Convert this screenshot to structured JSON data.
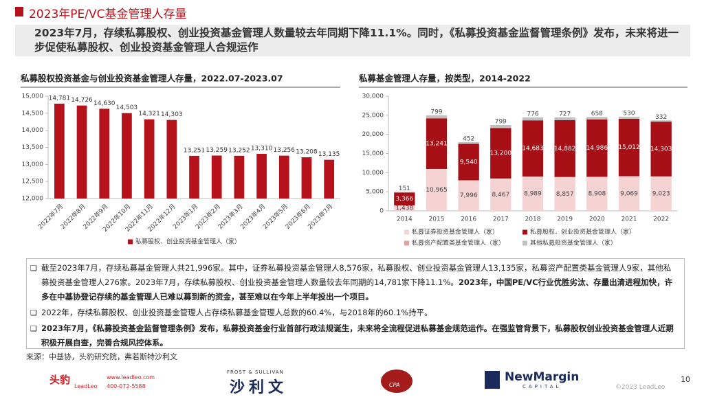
{
  "header": {
    "title": "2023年PE/VC基金管理人存量",
    "subtitle": "2023年7月，存续私募股权、创业投资基金管理人数量较去年同期下降11.1%。同时，《私募投资基金监督管理条例》发布，未来将进一步促使私募股权、创业投资基金管理人合规运作"
  },
  "chart_data": [
    {
      "type": "bar",
      "title": "私募股权投资基金与创业投资基金管理人存量，2022.07-2023.07",
      "categories": [
        "2022年7月",
        "2022年8月",
        "2022年9月",
        "2022年10月",
        "2022年11月",
        "2022年12月",
        "2023年1月",
        "2023年2月",
        "2023年3月",
        "2023年4月",
        "2023年5月",
        "2023年6月",
        "2023年7月"
      ],
      "series": [
        {
          "name": "私募股权、创业投资基金管理人（家）",
          "color": "#b5121b",
          "values": [
            14781,
            14726,
            14630,
            14503,
            14321,
            14303,
            13251,
            13259,
            13252,
            13310,
            13256,
            13208,
            13135
          ],
          "value_labels": [
            "14,781",
            "14,726",
            "14,630",
            "14,503",
            "14,321",
            "14,303",
            "13,251",
            "13,259",
            "13,252",
            "13,310",
            "13,256",
            "13,208",
            "13,135"
          ]
        }
      ],
      "ylim": [
        12000,
        15000
      ],
      "yticks": [
        {
          "value": 12000,
          "label": "12,000"
        },
        {
          "value": 12500,
          "label": "12,500"
        },
        {
          "value": 13000,
          "label": "13,000"
        },
        {
          "value": 13500,
          "label": "13,500"
        },
        {
          "value": 14000,
          "label": "14,000"
        },
        {
          "value": 14500,
          "label": "14,500"
        },
        {
          "value": 15000,
          "label": "15,000"
        }
      ]
    },
    {
      "type": "stacked_bar",
      "title": "私募基金管理人存量，按类型，2014-2022",
      "categories": [
        "2014",
        "2015",
        "2016",
        "2017",
        "2018",
        "2019",
        "2020",
        "2021",
        "2022"
      ],
      "series": [
        {
          "name": "私募证券投资基金管理人（家）",
          "color": "#f6d3d3",
          "values": [
            1438,
            10965,
            7996,
            8467,
            8989,
            8857,
            8908,
            9069,
            9023
          ],
          "value_labels": [
            "1,438",
            "10,965",
            "7,996",
            "8,467",
            "8,989",
            "8,857",
            "8,908",
            "9,069",
            "9,023"
          ]
        },
        {
          "name": "私募股权、创业投资基金管理人（家）",
          "color": "#a50f15",
          "values": [
            3366,
            13241,
            9540,
            13200,
            14683,
            14882,
            14986,
            15012,
            14303
          ],
          "value_labels": [
            "3,366",
            "13,241",
            "9,540",
            "13,200",
            "14,683",
            "14,882",
            "14,986",
            "15,012",
            "14,303"
          ]
        },
        {
          "name": "私募资产配置类基金管理人（家）",
          "color": "#e3a0a0",
          "values": [
            null,
            null,
            null,
            null,
            null,
            null,
            9,
            9,
            9
          ]
        },
        {
          "name": "其他私募投资基金管理人（家）",
          "color": "#c0c0c0",
          "values": [
            151,
            799,
            452,
            799,
            776,
            727,
            658,
            530,
            332
          ]
        }
      ],
      "ylim": [
        0,
        30000
      ],
      "yticks": [
        0,
        {
          "value": 5000,
          "label": "5,000"
        },
        {
          "value": 10000,
          "label": "10,000"
        },
        {
          "value": 15000,
          "label": "15,000"
        },
        {
          "value": 20000,
          "label": "20,000"
        },
        {
          "value": 25000,
          "label": "25,000"
        },
        {
          "value": 30000,
          "label": "30,000"
        }
      ]
    }
  ],
  "bullets": [
    {
      "plain": "截至2023年7月，存续私募基金管理人共21,996家。其中，证券私募投资基金管理人8,576家，私募股权、创业投资基金管理人13,135家，私募资产配置类基金管理人9家，其他私募投资基金管理人276家。2023年7月，存续私募股权、创业投资基金管理人数量较去年同期的14,781家下降11.1%。",
      "bold": "2023年，中国PE/VC行业优胜劣汰、存量出清进程加快，许多在中基协登记存续的基金管理人已难以募到新的资金，甚至难以在今年上半年投出一个项目。"
    },
    {
      "plain": "2022年，存续私募股权、创业投资基金管理人占存续私募基金管理人总数的60.4%，与2018年的60.1%持平。"
    },
    {
      "bold": "2023年7月，《私募投资基金监督管理条例》发布，私募投资基金行业首部行政法规诞生，未来将全流程促进私募基金规范运作。在强监管背景下，私募股权创业投资基金管理人近期积极开展自查，完善合规风控体系。"
    }
  ],
  "source": "来源：中基协，头豹研究院，弗若斯特沙利文",
  "footer": {
    "leadleo_cn": "头豹",
    "leadleo_en": "LeadLeo",
    "website": "www.leadleo.com",
    "phone": "400-072-5588",
    "frost": "FROST & SULLIVAN",
    "frost_cn": "沙利文",
    "cpa": "CPA",
    "newmargin": "NewMargin",
    "capital": "CAPITAL",
    "copyright": "©2023 LeadLeo",
    "page": "10"
  }
}
